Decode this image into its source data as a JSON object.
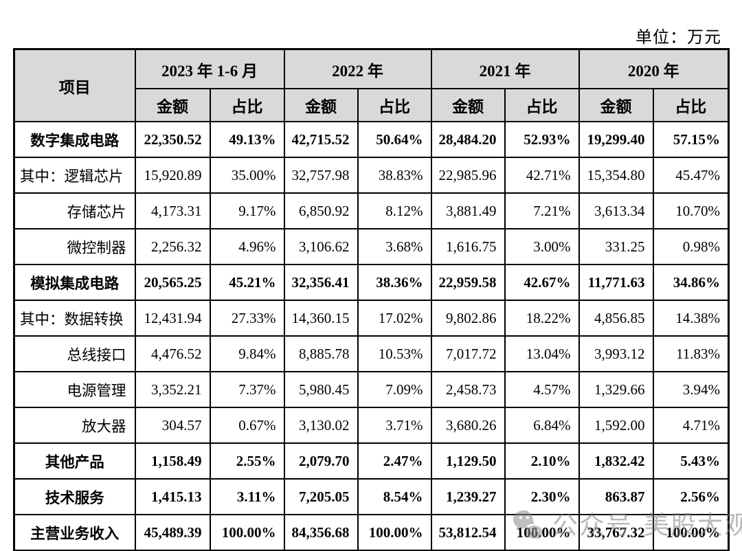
{
  "unit_label": "单位：万元",
  "colors": {
    "header_bg": "#d9d9d9",
    "border": "#000000",
    "watermark": "#8c8c8c"
  },
  "watermark": {
    "icon": "wechat-icon",
    "text1": "公众号",
    "text2": "美股大观"
  },
  "table": {
    "corner_header": "项目",
    "col_groups": [
      {
        "label": "2023 年 1-6 月"
      },
      {
        "label": "2022 年"
      },
      {
        "label": "2021 年"
      },
      {
        "label": "2020 年"
      }
    ],
    "sub_headers": {
      "amount": "金额",
      "ratio": "占比"
    },
    "rows": [
      {
        "label": "数字集成电路",
        "style": "section",
        "align": "center",
        "cells": [
          "22,350.52",
          "49.13%",
          "42,715.52",
          "50.64%",
          "28,484.20",
          "52.93%",
          "19,299.40",
          "57.15%"
        ]
      },
      {
        "label": "其中：逻辑芯片",
        "style": "normal",
        "align": "left",
        "cells": [
          "15,920.89",
          "35.00%",
          "32,757.98",
          "38.83%",
          "22,985.96",
          "42.71%",
          "15,354.80",
          "45.47%"
        ]
      },
      {
        "label": "存储芯片",
        "style": "normal",
        "align": "right",
        "cells": [
          "4,173.31",
          "9.17%",
          "6,850.92",
          "8.12%",
          "3,881.49",
          "7.21%",
          "3,613.34",
          "10.70%"
        ]
      },
      {
        "label": "微控制器",
        "style": "normal",
        "align": "right",
        "cells": [
          "2,256.32",
          "4.96%",
          "3,106.62",
          "3.68%",
          "1,616.75",
          "3.00%",
          "331.25",
          "0.98%"
        ]
      },
      {
        "label": "模拟集成电路",
        "style": "section",
        "align": "center",
        "cells": [
          "20,565.25",
          "45.21%",
          "32,356.41",
          "38.36%",
          "22,959.58",
          "42.67%",
          "11,771.63",
          "34.86%"
        ]
      },
      {
        "label": "其中：数据转换",
        "style": "normal",
        "align": "left",
        "cells": [
          "12,431.94",
          "27.33%",
          "14,360.15",
          "17.02%",
          "9,802.86",
          "18.22%",
          "4,856.85",
          "14.38%"
        ]
      },
      {
        "label": "总线接口",
        "style": "normal",
        "align": "right",
        "cells": [
          "4,476.52",
          "9.84%",
          "8,885.78",
          "10.53%",
          "7,017.72",
          "13.04%",
          "3,993.12",
          "11.83%"
        ]
      },
      {
        "label": "电源管理",
        "style": "normal",
        "align": "right",
        "cells": [
          "3,352.21",
          "7.37%",
          "5,980.45",
          "7.09%",
          "2,458.73",
          "4.57%",
          "1,329.66",
          "3.94%"
        ]
      },
      {
        "label": "放大器",
        "style": "normal",
        "align": "right",
        "cells": [
          "304.57",
          "0.67%",
          "3,130.02",
          "3.71%",
          "3,680.26",
          "6.84%",
          "1,592.00",
          "4.71%"
        ]
      },
      {
        "label": "其他产品",
        "style": "section",
        "align": "center",
        "cells": [
          "1,158.49",
          "2.55%",
          "2,079.70",
          "2.47%",
          "1,129.50",
          "2.10%",
          "1,832.42",
          "5.43%"
        ]
      },
      {
        "label": "技术服务",
        "style": "section",
        "align": "center",
        "cells": [
          "1,415.13",
          "3.11%",
          "7,205.05",
          "8.54%",
          "1,239.27",
          "2.30%",
          "863.87",
          "2.56%"
        ]
      },
      {
        "label": "主营业务收入",
        "style": "section",
        "align": "center",
        "cells": [
          "45,489.39",
          "100.00%",
          "84,356.68",
          "100.00%",
          "53,812.54",
          "100.00%",
          "33,767.32",
          "100.00%"
        ]
      }
    ]
  }
}
